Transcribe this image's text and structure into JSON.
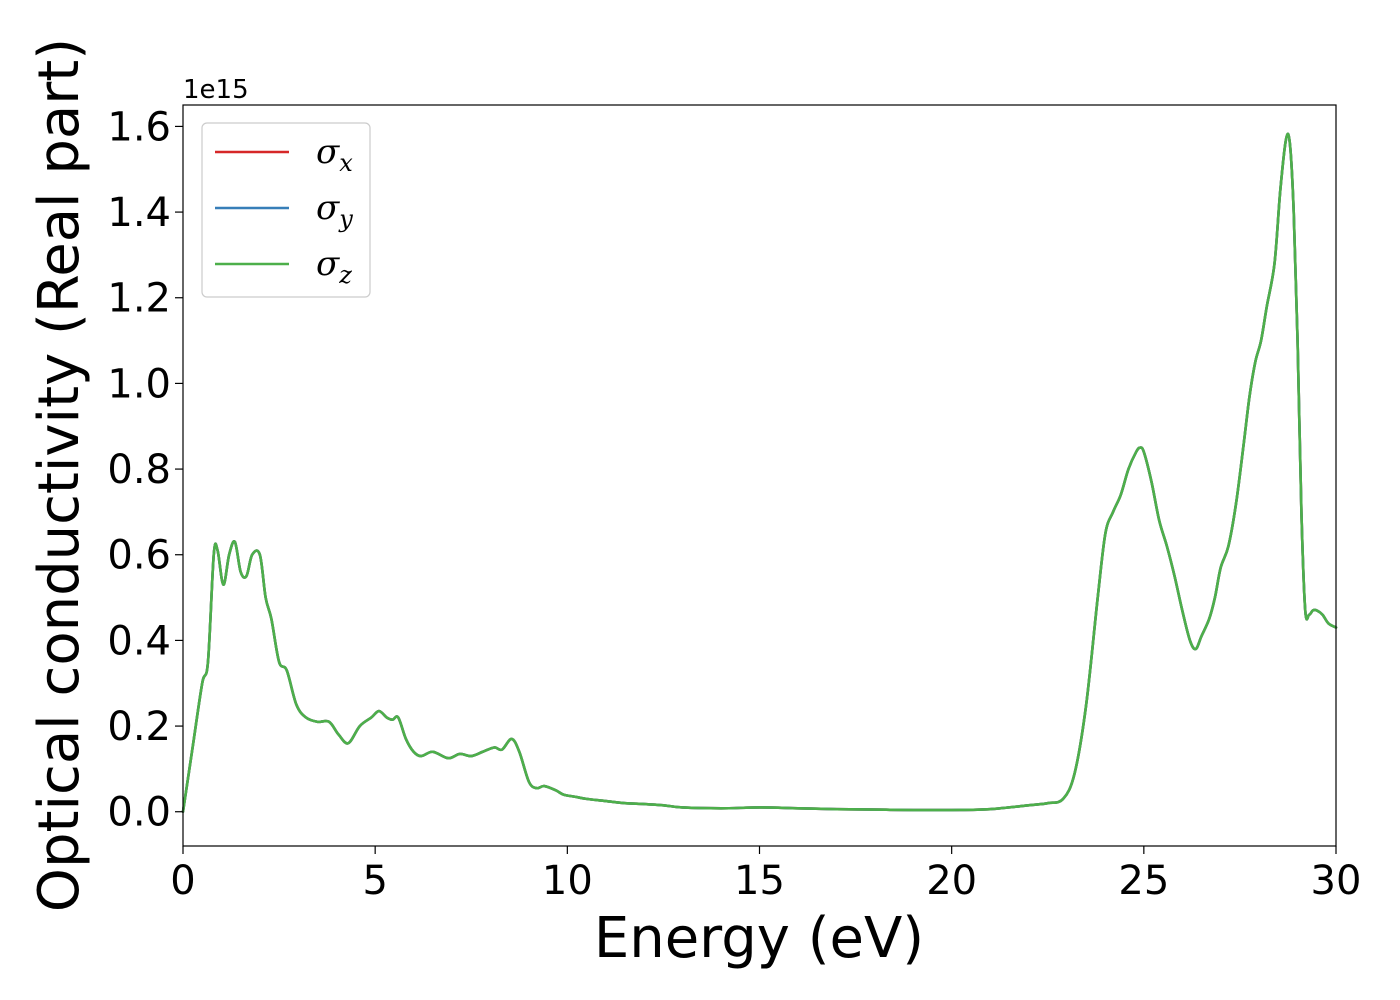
{
  "chart_data": {
    "type": "line",
    "title": "",
    "xlabel": "Energy (eV)",
    "ylabel": "Optical conductivity (Real part)",
    "y_offset_label": "1e15",
    "xlim": [
      0,
      30
    ],
    "ylim": [
      -0.08,
      1.65
    ],
    "x_ticks": [
      0,
      5,
      10,
      15,
      20,
      25,
      30
    ],
    "x_tick_labels": [
      "0",
      "5",
      "10",
      "15",
      "20",
      "25",
      "30"
    ],
    "y_ticks": [
      0.0,
      0.2,
      0.4,
      0.6,
      0.8,
      1.0,
      1.2,
      1.4,
      1.6
    ],
    "y_tick_labels": [
      "0.0",
      "0.2",
      "0.4",
      "0.6",
      "0.8",
      "1.0",
      "1.2",
      "1.4",
      "1.6"
    ],
    "grid": false,
    "legend_position": "top-left",
    "x": [
      0,
      0.25,
      0.5,
      0.65,
      0.8,
      0.9,
      1.05,
      1.2,
      1.35,
      1.5,
      1.65,
      1.8,
      2.0,
      2.15,
      2.3,
      2.5,
      2.7,
      2.95,
      3.2,
      3.5,
      3.8,
      4.05,
      4.3,
      4.6,
      4.9,
      5.1,
      5.3,
      5.45,
      5.6,
      5.8,
      6.0,
      6.2,
      6.5,
      6.9,
      7.2,
      7.5,
      7.8,
      8.1,
      8.3,
      8.55,
      8.75,
      9.0,
      9.2,
      9.4,
      9.7,
      9.9,
      10.2,
      10.5,
      11.0,
      11.5,
      12.0,
      12.5,
      13.0,
      14.0,
      15.0,
      16.0,
      17.0,
      18.0,
      19.0,
      20.0,
      21.0,
      22.0,
      22.5,
      22.9,
      23.2,
      23.5,
      23.8,
      24.0,
      24.2,
      24.4,
      24.6,
      24.8,
      24.9,
      25.0,
      25.2,
      25.4,
      25.6,
      25.8,
      26.0,
      26.2,
      26.35,
      26.5,
      26.7,
      26.85,
      27.0,
      27.2,
      27.4,
      27.6,
      27.75,
      27.9,
      28.05,
      28.2,
      28.4,
      28.55,
      28.7,
      28.8,
      28.9,
      29.0,
      29.1,
      29.2,
      29.3,
      29.4,
      29.5,
      29.65,
      29.8,
      30.0
    ],
    "series": [
      {
        "name": "σx",
        "color": "#d62728",
        "values": [
          0.0,
          0.15,
          0.3,
          0.35,
          0.6,
          0.61,
          0.53,
          0.6,
          0.63,
          0.56,
          0.55,
          0.6,
          0.6,
          0.5,
          0.45,
          0.35,
          0.33,
          0.25,
          0.22,
          0.21,
          0.21,
          0.18,
          0.16,
          0.2,
          0.22,
          0.235,
          0.22,
          0.215,
          0.22,
          0.17,
          0.14,
          0.13,
          0.14,
          0.125,
          0.135,
          0.13,
          0.14,
          0.15,
          0.145,
          0.17,
          0.14,
          0.07,
          0.055,
          0.06,
          0.05,
          0.04,
          0.035,
          0.03,
          0.025,
          0.02,
          0.018,
          0.015,
          0.01,
          0.008,
          0.01,
          0.008,
          0.006,
          0.005,
          0.004,
          0.004,
          0.006,
          0.015,
          0.02,
          0.03,
          0.09,
          0.25,
          0.5,
          0.65,
          0.7,
          0.74,
          0.8,
          0.84,
          0.85,
          0.84,
          0.77,
          0.68,
          0.62,
          0.55,
          0.47,
          0.4,
          0.38,
          0.41,
          0.45,
          0.5,
          0.57,
          0.62,
          0.72,
          0.86,
          0.97,
          1.05,
          1.1,
          1.18,
          1.28,
          1.45,
          1.57,
          1.56,
          1.4,
          1.1,
          0.7,
          0.47,
          0.46,
          0.47,
          0.47,
          0.46,
          0.44,
          0.43
        ]
      },
      {
        "name": "σy",
        "color": "#377eb8",
        "values": [
          0.0,
          0.15,
          0.3,
          0.35,
          0.6,
          0.61,
          0.53,
          0.6,
          0.63,
          0.56,
          0.55,
          0.6,
          0.6,
          0.5,
          0.45,
          0.35,
          0.33,
          0.25,
          0.22,
          0.21,
          0.21,
          0.18,
          0.16,
          0.2,
          0.22,
          0.235,
          0.22,
          0.215,
          0.22,
          0.17,
          0.14,
          0.13,
          0.14,
          0.125,
          0.135,
          0.13,
          0.14,
          0.15,
          0.145,
          0.17,
          0.14,
          0.07,
          0.055,
          0.06,
          0.05,
          0.04,
          0.035,
          0.03,
          0.025,
          0.02,
          0.018,
          0.015,
          0.01,
          0.008,
          0.01,
          0.008,
          0.006,
          0.005,
          0.004,
          0.004,
          0.006,
          0.015,
          0.02,
          0.03,
          0.09,
          0.25,
          0.5,
          0.65,
          0.7,
          0.74,
          0.8,
          0.84,
          0.85,
          0.84,
          0.77,
          0.68,
          0.62,
          0.55,
          0.47,
          0.4,
          0.38,
          0.41,
          0.45,
          0.5,
          0.57,
          0.62,
          0.72,
          0.86,
          0.97,
          1.05,
          1.1,
          1.18,
          1.28,
          1.45,
          1.57,
          1.56,
          1.4,
          1.1,
          0.7,
          0.47,
          0.46,
          0.47,
          0.47,
          0.46,
          0.44,
          0.43
        ]
      },
      {
        "name": "σz",
        "color": "#4daf4a",
        "values": [
          0.0,
          0.15,
          0.3,
          0.35,
          0.6,
          0.61,
          0.53,
          0.6,
          0.63,
          0.56,
          0.55,
          0.6,
          0.6,
          0.5,
          0.45,
          0.35,
          0.33,
          0.25,
          0.22,
          0.21,
          0.21,
          0.18,
          0.16,
          0.2,
          0.22,
          0.235,
          0.22,
          0.215,
          0.22,
          0.17,
          0.14,
          0.13,
          0.14,
          0.125,
          0.135,
          0.13,
          0.14,
          0.15,
          0.145,
          0.17,
          0.14,
          0.07,
          0.055,
          0.06,
          0.05,
          0.04,
          0.035,
          0.03,
          0.025,
          0.02,
          0.018,
          0.015,
          0.01,
          0.008,
          0.01,
          0.008,
          0.006,
          0.005,
          0.004,
          0.004,
          0.006,
          0.015,
          0.02,
          0.03,
          0.09,
          0.25,
          0.5,
          0.65,
          0.7,
          0.74,
          0.8,
          0.84,
          0.85,
          0.84,
          0.77,
          0.68,
          0.62,
          0.55,
          0.47,
          0.4,
          0.38,
          0.41,
          0.45,
          0.5,
          0.57,
          0.62,
          0.72,
          0.86,
          0.97,
          1.05,
          1.1,
          1.18,
          1.28,
          1.45,
          1.57,
          1.56,
          1.4,
          1.1,
          0.7,
          0.47,
          0.46,
          0.47,
          0.47,
          0.46,
          0.44,
          0.43
        ]
      }
    ],
    "legend": [
      {
        "symbol": "σ",
        "sub": "x",
        "color": "#d62728"
      },
      {
        "symbol": "σ",
        "sub": "y",
        "color": "#377eb8"
      },
      {
        "symbol": "σ",
        "sub": "z",
        "color": "#4daf4a"
      }
    ]
  }
}
